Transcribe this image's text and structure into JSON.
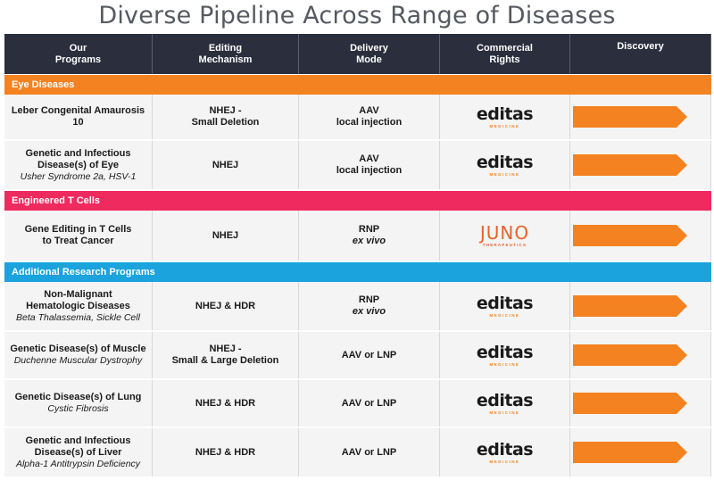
{
  "title": "Diverse Pipeline Across Range of Diseases",
  "header": {
    "programs": "Our\nPrograms",
    "mechanism": "Editing\nMechanism",
    "delivery": "Delivery\nMode",
    "rights": "Commercial\nRights",
    "discovery": "Discovery"
  },
  "sections": [
    {
      "label": "Eye Diseases",
      "color": "#f58220"
    },
    {
      "label": "Engineered T Cells",
      "color": "#ef2a5f"
    },
    {
      "label": "Additional Research Programs",
      "color": "#1aa3dd"
    }
  ],
  "logos": {
    "editas": {
      "word": "editas",
      "tag": "MEDICINE"
    },
    "juno": {
      "word": "JUNO",
      "tag": "THERAPEUTICS"
    }
  },
  "rows": [
    {
      "program": "Leber Congenital Amaurosis 10",
      "sub": "",
      "mechanism": "NHEJ -\nSmall Deletion",
      "delivery": "AAV",
      "delivery2": "local injection",
      "partner": "editas"
    },
    {
      "program": "Genetic and Infectious\nDisease(s) of Eye",
      "sub": "Usher Syndrome 2a, HSV-1",
      "mechanism": "NHEJ",
      "delivery": "AAV",
      "delivery2": "local injection",
      "partner": "editas"
    },
    {
      "program": "Gene Editing in T Cells\nto Treat Cancer",
      "sub": "",
      "mechanism": "NHEJ",
      "delivery": "RNP",
      "delivery2": "ex vivo",
      "partner": "juno"
    },
    {
      "program": "Non-Malignant\nHematologic Diseases",
      "sub": "Beta Thalassemia, Sickle Cell",
      "mechanism": "NHEJ & HDR",
      "delivery": "RNP",
      "delivery2": "ex vivo",
      "partner": "editas"
    },
    {
      "program": "Genetic Disease(s) of Muscle",
      "sub": "Duchenne Muscular Dystrophy",
      "mechanism": "NHEJ -\nSmall  & Large Deletion",
      "delivery": "AAV or LNP",
      "delivery2": "",
      "partner": "editas"
    },
    {
      "program": "Genetic Disease(s) of Lung",
      "sub": "Cystic Fibrosis",
      "mechanism": "NHEJ & HDR",
      "delivery": "AAV or LNP",
      "delivery2": "",
      "partner": "editas"
    },
    {
      "program": "Genetic and Infectious\nDisease(s) of Liver",
      "sub": "Alpha-1 Antitrypsin Deficiency",
      "mechanism": "NHEJ & HDR",
      "delivery": "AAV or LNP",
      "delivery2": "",
      "partner": "editas"
    }
  ],
  "colors": {
    "header_bg": "#2b2e3d",
    "arrow": "#f58220",
    "row_bg": "#f4f4f4"
  }
}
